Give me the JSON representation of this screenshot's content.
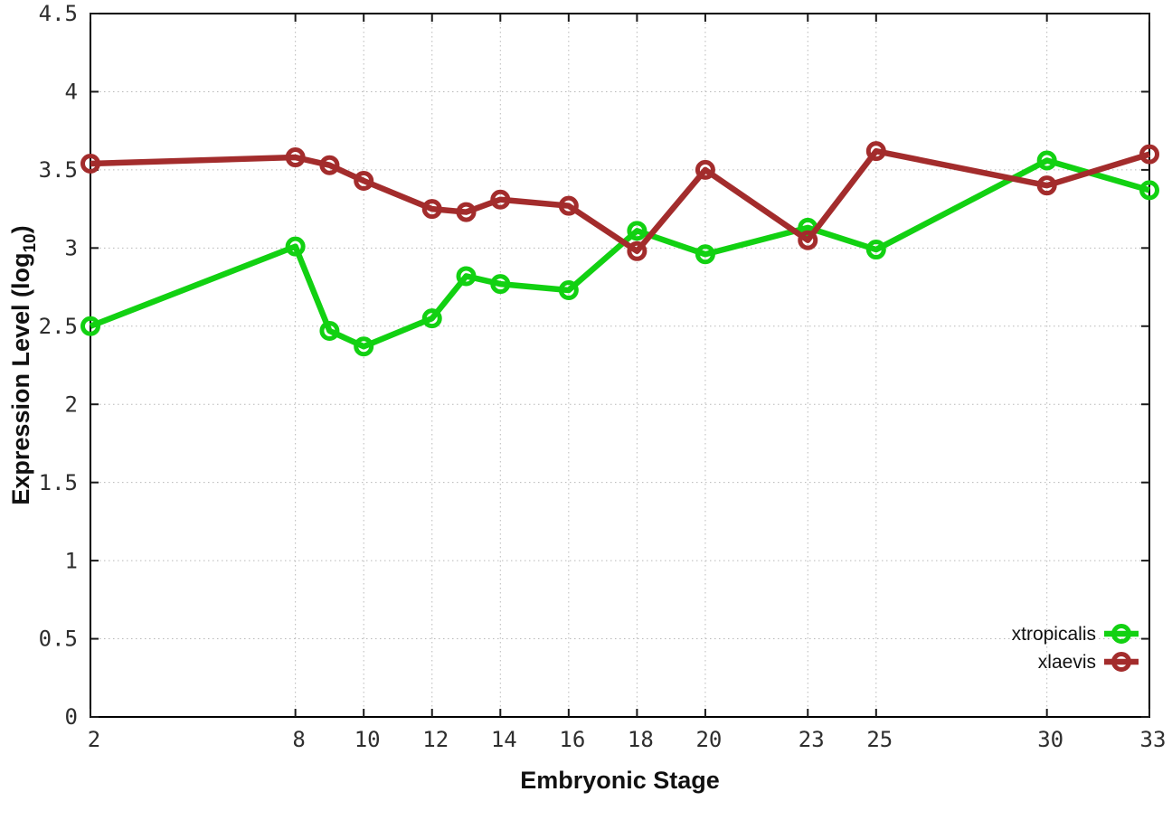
{
  "chart_data": {
    "type": "line",
    "title": "",
    "xlabel": "Embryonic Stage",
    "ylabel": "Expression Level (log10)",
    "ylabel_parts": {
      "main": "Expression Level (log",
      "sub": "10",
      "close": ")"
    },
    "x": [
      2,
      8,
      9,
      10,
      12,
      13,
      14,
      16,
      18,
      20,
      23,
      25,
      30,
      33
    ],
    "xticks": [
      2,
      8,
      10,
      12,
      14,
      16,
      18,
      20,
      23,
      25,
      30,
      33
    ],
    "yticks": [
      0,
      0.5,
      1,
      1.5,
      2,
      2.5,
      3,
      3.5,
      4,
      4.5
    ],
    "xlim": [
      2,
      33
    ],
    "ylim": [
      0,
      4.5
    ],
    "grid": true,
    "legend_position": "inside-bottom-right",
    "series": [
      {
        "name": "xtropicalis",
        "color": "#12d112",
        "values": [
          2.5,
          3.01,
          2.47,
          2.37,
          2.55,
          2.82,
          2.77,
          2.73,
          3.11,
          2.96,
          3.13,
          2.99,
          3.56,
          3.37
        ]
      },
      {
        "name": "xlaevis",
        "color": "#a32c2c",
        "values": [
          3.54,
          3.58,
          3.53,
          3.43,
          3.25,
          3.23,
          3.31,
          3.27,
          2.98,
          3.5,
          3.05,
          3.62,
          3.4,
          3.6
        ]
      }
    ],
    "colors": {
      "grid": "#b8b8b8",
      "border": "#000000",
      "tick": "#1a1a1a",
      "background": "#ffffff"
    }
  }
}
